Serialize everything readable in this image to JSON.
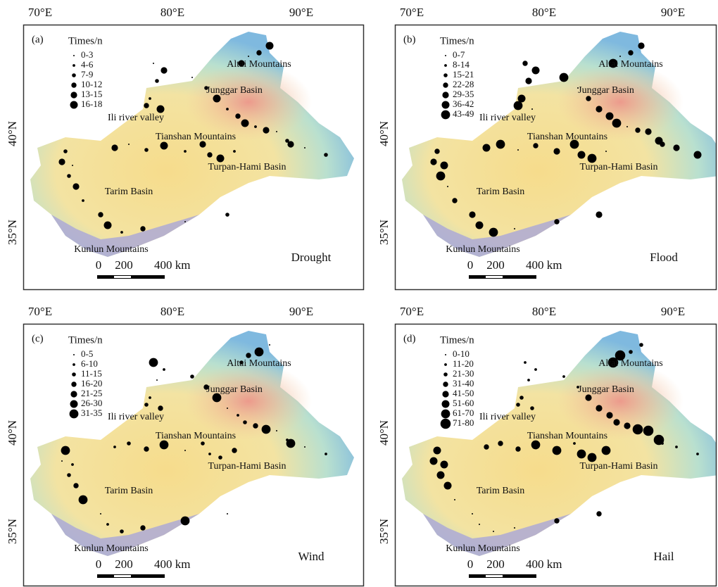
{
  "axes": {
    "lon": [
      "70°E",
      "80°E",
      "90°E"
    ],
    "lat": [
      "40°N",
      "35°N"
    ]
  },
  "regions": [
    "Altai Mountains",
    "Junggar Basin",
    "Ili river valley",
    "Tianshan Mountains",
    "Turpan-Hami Basin",
    "Tarim Basin",
    "Kunlun Mountains"
  ],
  "scale": [
    "0",
    "200",
    "400 km"
  ],
  "panels": [
    {
      "label": "(a)",
      "legend_title": "Times/n",
      "legend": [
        "0-3",
        "4-6",
        "7-9",
        "10-12",
        "13-15",
        "16-18"
      ],
      "hazard": "Drought"
    },
    {
      "label": "(b)",
      "legend_title": "Times/n",
      "legend": [
        "0-7",
        "8-14",
        "15-21",
        "22-28",
        "29-35",
        "36-42",
        "43-49"
      ],
      "hazard": "Flood"
    },
    {
      "label": "(c)",
      "legend_title": "Times/n",
      "legend": [
        "0-5",
        "6-10",
        "11-15",
        "16-20",
        "21-25",
        "26-30",
        "31-35"
      ],
      "hazard": "Wind"
    },
    {
      "label": "(d)",
      "legend_title": "Times/n",
      "legend": [
        "0-10",
        "11-20",
        "21-30",
        "31-40",
        "41-50",
        "51-60",
        "61-70",
        "71-80"
      ],
      "hazard": "Hail"
    }
  ]
}
